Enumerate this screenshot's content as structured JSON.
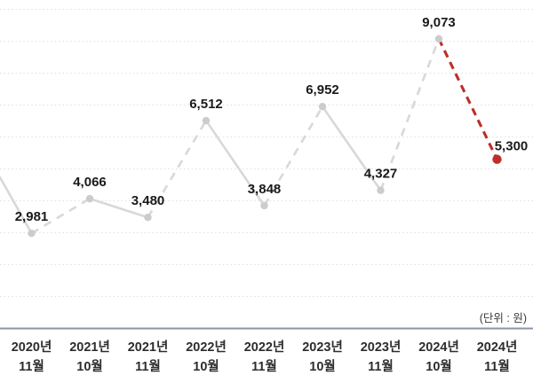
{
  "chart_data": {
    "type": "line",
    "title": "",
    "unit_note": "(단위 : 원)",
    "ylim": [
      0,
      10000
    ],
    "grid_step": 1000,
    "grid": "dotted-horizontal",
    "legend": "none",
    "lead_in": {
      "from_left_edge": true,
      "value_at_edge": 4736,
      "style": "solid",
      "note": "line enters cropped chart from left edge down to first point"
    },
    "points": [
      {
        "year": "2020년",
        "month": "11월",
        "value": 2981,
        "label": "2,981",
        "incoming": "solid",
        "series": "actual"
      },
      {
        "year": "2021년",
        "month": "10월",
        "value": 4066,
        "label": "4,066",
        "incoming": "dashed",
        "series": "actual"
      },
      {
        "year": "2021년",
        "month": "11월",
        "value": 3480,
        "label": "3,480",
        "incoming": "solid",
        "series": "actual"
      },
      {
        "year": "2022년",
        "month": "10월",
        "value": 6512,
        "label": "6,512",
        "incoming": "dashed",
        "series": "actual"
      },
      {
        "year": "2022년",
        "month": "11월",
        "value": 3848,
        "label": "3,848",
        "incoming": "solid",
        "series": "actual"
      },
      {
        "year": "2023년",
        "month": "10월",
        "value": 6952,
        "label": "6,952",
        "incoming": "dashed",
        "series": "actual"
      },
      {
        "year": "2023년",
        "month": "11월",
        "value": 4327,
        "label": "4,327",
        "incoming": "solid",
        "series": "actual"
      },
      {
        "year": "2024년",
        "month": "10월",
        "value": 9073,
        "label": "9,073",
        "incoming": "dashed",
        "series": "actual"
      },
      {
        "year": "2024년",
        "month": "11월",
        "value": 5300,
        "label": "5,300",
        "incoming": "dashed",
        "series": "highlight",
        "label_dx": 16,
        "label_dy": 10
      }
    ],
    "colors": {
      "line": "#d8d8d8",
      "marker": "#cccccc",
      "highlight": "#bf2e28",
      "grid": "#e1e1e1",
      "axis": "#8a96a6",
      "value_label": "#1a1a1a",
      "axis_label": "#2d2d2d"
    }
  }
}
